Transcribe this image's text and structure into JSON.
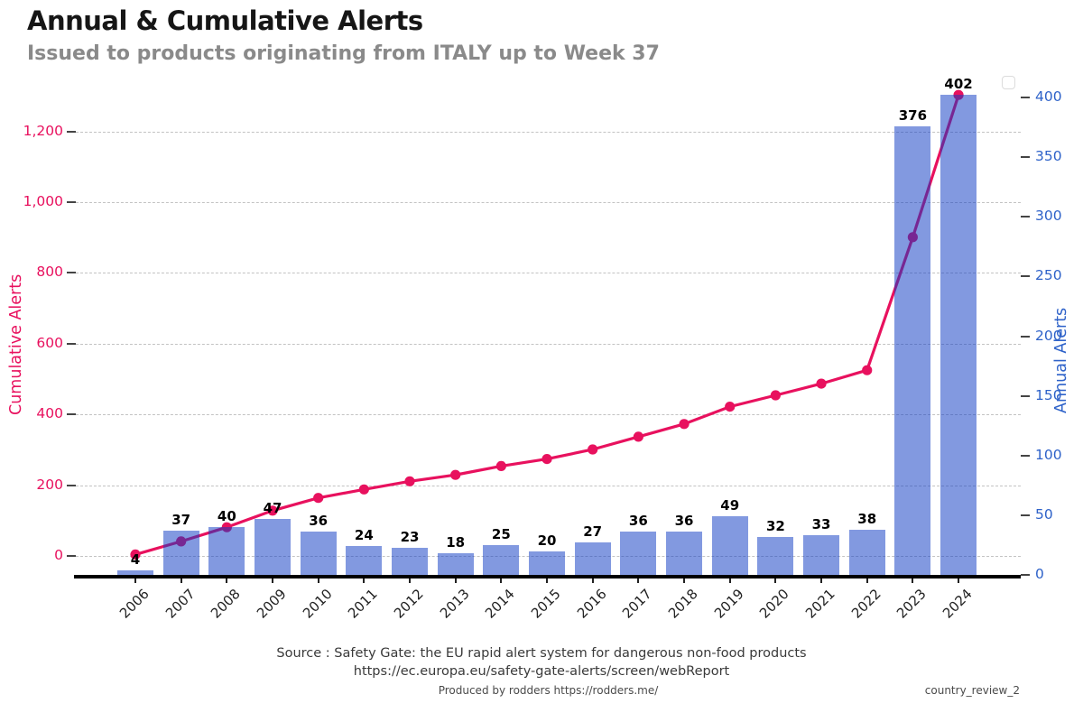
{
  "header": {
    "title": "Annual & Cumulative Alerts",
    "subtitle": "Issued to products originating from ITALY up to Week 37"
  },
  "chart_data": {
    "type": "bar",
    "categories": [
      "2006",
      "2007",
      "2008",
      "2009",
      "2010",
      "2011",
      "2012",
      "2013",
      "2014",
      "2015",
      "2016",
      "2017",
      "2018",
      "2019",
      "2020",
      "2021",
      "2022",
      "2023",
      "2024"
    ],
    "series": [
      {
        "name": "Annual Alerts",
        "type": "bar",
        "axis": "right",
        "values": [
          4,
          37,
          40,
          47,
          36,
          24,
          23,
          18,
          25,
          20,
          27,
          36,
          36,
          49,
          32,
          33,
          38,
          376,
          402
        ]
      },
      {
        "name": "Cumulative Alerts",
        "type": "line",
        "axis": "left",
        "values": [
          4,
          41,
          81,
          128,
          164,
          188,
          211,
          229,
          254,
          274,
          301,
          337,
          373,
          422,
          454,
          487,
          525,
          901,
          1303
        ]
      }
    ],
    "left_axis": {
      "title": "Cumulative Alerts",
      "tick_labels": [
        "0",
        "200",
        "400",
        "600",
        "800",
        "1,000",
        "1,200"
      ],
      "tick_values": [
        0,
        200,
        400,
        600,
        800,
        1000,
        1200
      ],
      "range": [
        0,
        1340
      ]
    },
    "right_axis": {
      "title": "Annual Alerts",
      "tick_labels": [
        "0",
        "50",
        "100",
        "150",
        "200",
        "250",
        "300",
        "350",
        "400"
      ],
      "tick_values": [
        0,
        50,
        100,
        150,
        200,
        250,
        300,
        350,
        400
      ],
      "range": [
        0,
        400
      ]
    },
    "grid": "horizontal dashed gridlines at left-axis ticks",
    "legend_position": "top-right-empty-box",
    "colors": {
      "bar_fill": "#849ae2",
      "bar_fill_rgba": "rgba(15,60,195,0.52)",
      "line": "#e8115e",
      "left_axis_text": "#e8115e",
      "right_axis_text": "#2e62c9",
      "overlap_dot": "#7c2490"
    }
  },
  "footer": {
    "source_line1": "Source : Safety Gate: the EU rapid alert system for dangerous non-food products",
    "source_line2": "https://ec.europa.eu/safety-gate-alerts/screen/webReport",
    "produced_by": "Produced by rodders https://rodders.me/",
    "doc_ref": "country_review_2"
  }
}
